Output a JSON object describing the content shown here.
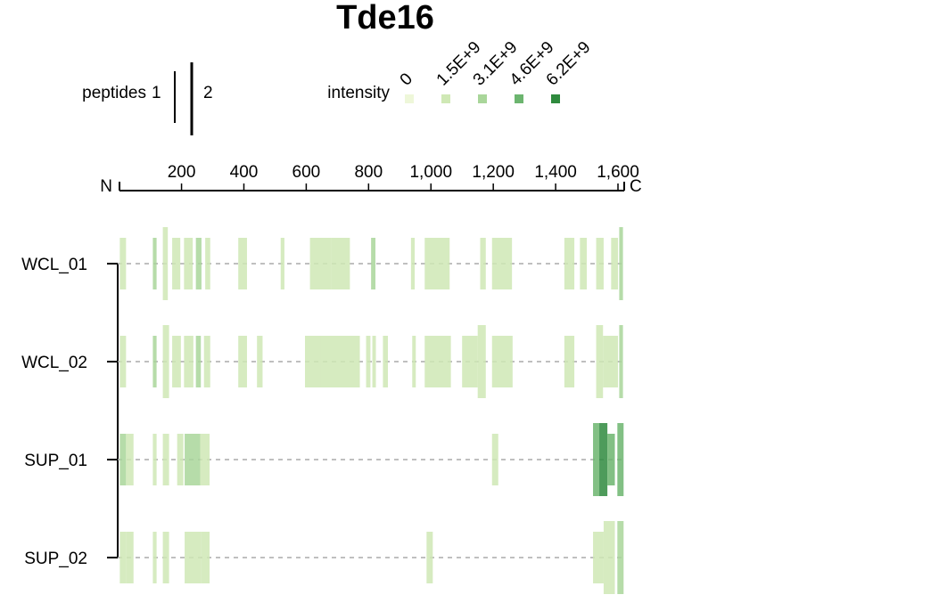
{
  "chart_data": {
    "type": "peptide-coverage",
    "title": "Tde16",
    "axis": {
      "start_label": "N",
      "end_label": "C",
      "range": [
        1,
        1620
      ],
      "ticks": [
        200,
        400,
        600,
        800,
        1000,
        1200,
        1400,
        1600
      ],
      "tick_labels": [
        "200",
        "400",
        "600",
        "800",
        "1,000",
        "1,200",
        "1,400",
        "1,600"
      ]
    },
    "legend": {
      "peptides": {
        "label": "peptides",
        "values": [
          "1",
          "2"
        ]
      },
      "intensity": {
        "label": "intensity",
        "levels": [
          "0",
          "1.5E+9",
          "3.1E+9",
          "4.6E+9",
          "6.2E+9"
        ],
        "colors": [
          "#eef7d9",
          "#cfe8b5",
          "#a9d69a",
          "#6cb56f",
          "#2f8a3e"
        ]
      }
    },
    "samples": [
      {
        "name": "WCL_01",
        "peptides": [
          {
            "start": 2,
            "end": 22,
            "level": 1,
            "count": 1
          },
          {
            "start": 108,
            "end": 120,
            "level": 2,
            "count": 1
          },
          {
            "start": 140,
            "end": 156,
            "level": 1,
            "count": 2
          },
          {
            "start": 170,
            "end": 196,
            "level": 1,
            "count": 1
          },
          {
            "start": 208,
            "end": 236,
            "level": 1,
            "count": 1
          },
          {
            "start": 246,
            "end": 264,
            "level": 2,
            "count": 1
          },
          {
            "start": 276,
            "end": 292,
            "level": 1,
            "count": 1
          },
          {
            "start": 382,
            "end": 410,
            "level": 1,
            "count": 1
          },
          {
            "start": 518,
            "end": 530,
            "level": 1,
            "count": 1
          },
          {
            "start": 612,
            "end": 680,
            "level": 1,
            "count": 1
          },
          {
            "start": 680,
            "end": 740,
            "level": 1,
            "count": 1
          },
          {
            "start": 808,
            "end": 822,
            "level": 2,
            "count": 1
          },
          {
            "start": 936,
            "end": 948,
            "level": 1,
            "count": 1
          },
          {
            "start": 980,
            "end": 1060,
            "level": 1,
            "count": 1
          },
          {
            "start": 1158,
            "end": 1176,
            "level": 1,
            "count": 1
          },
          {
            "start": 1196,
            "end": 1260,
            "level": 1,
            "count": 1
          },
          {
            "start": 1428,
            "end": 1460,
            "level": 1,
            "count": 1
          },
          {
            "start": 1478,
            "end": 1500,
            "level": 1,
            "count": 1
          },
          {
            "start": 1530,
            "end": 1554,
            "level": 1,
            "count": 1
          },
          {
            "start": 1578,
            "end": 1600,
            "level": 1,
            "count": 1
          },
          {
            "start": 1604,
            "end": 1616,
            "level": 2,
            "count": 2
          }
        ]
      },
      {
        "name": "WCL_02",
        "peptides": [
          {
            "start": 2,
            "end": 22,
            "level": 1,
            "count": 1
          },
          {
            "start": 108,
            "end": 120,
            "level": 2,
            "count": 1
          },
          {
            "start": 140,
            "end": 160,
            "level": 1,
            "count": 2
          },
          {
            "start": 170,
            "end": 198,
            "level": 1,
            "count": 1
          },
          {
            "start": 208,
            "end": 238,
            "level": 1,
            "count": 1
          },
          {
            "start": 246,
            "end": 262,
            "level": 2,
            "count": 1
          },
          {
            "start": 272,
            "end": 292,
            "level": 1,
            "count": 1
          },
          {
            "start": 382,
            "end": 410,
            "level": 1,
            "count": 1
          },
          {
            "start": 442,
            "end": 460,
            "level": 1,
            "count": 1
          },
          {
            "start": 596,
            "end": 646,
            "level": 1,
            "count": 1
          },
          {
            "start": 646,
            "end": 772,
            "level": 1,
            "count": 1
          },
          {
            "start": 792,
            "end": 806,
            "level": 1,
            "count": 1
          },
          {
            "start": 812,
            "end": 822,
            "level": 1,
            "count": 1
          },
          {
            "start": 846,
            "end": 862,
            "level": 1,
            "count": 1
          },
          {
            "start": 940,
            "end": 950,
            "level": 1,
            "count": 1
          },
          {
            "start": 980,
            "end": 1064,
            "level": 1,
            "count": 1
          },
          {
            "start": 1100,
            "end": 1150,
            "level": 1,
            "count": 1
          },
          {
            "start": 1150,
            "end": 1176,
            "level": 1,
            "count": 2
          },
          {
            "start": 1196,
            "end": 1262,
            "level": 1,
            "count": 1
          },
          {
            "start": 1428,
            "end": 1460,
            "level": 1,
            "count": 1
          },
          {
            "start": 1530,
            "end": 1552,
            "level": 1,
            "count": 2
          },
          {
            "start": 1552,
            "end": 1600,
            "level": 1,
            "count": 1
          },
          {
            "start": 1604,
            "end": 1616,
            "level": 2,
            "count": 2
          }
        ]
      },
      {
        "name": "SUP_01",
        "peptides": [
          {
            "start": 2,
            "end": 22,
            "level": 2,
            "count": 1
          },
          {
            "start": 22,
            "end": 46,
            "level": 1,
            "count": 1
          },
          {
            "start": 108,
            "end": 120,
            "level": 1,
            "count": 1
          },
          {
            "start": 140,
            "end": 160,
            "level": 1,
            "count": 1
          },
          {
            "start": 186,
            "end": 206,
            "level": 1,
            "count": 1
          },
          {
            "start": 210,
            "end": 260,
            "level": 2,
            "count": 1
          },
          {
            "start": 260,
            "end": 290,
            "level": 1,
            "count": 1
          },
          {
            "start": 1196,
            "end": 1216,
            "level": 1,
            "count": 1
          },
          {
            "start": 1520,
            "end": 1540,
            "level": 3,
            "count": 2
          },
          {
            "start": 1540,
            "end": 1566,
            "level": 4,
            "count": 2
          },
          {
            "start": 1566,
            "end": 1590,
            "level": 3,
            "count": 1
          },
          {
            "start": 1598,
            "end": 1618,
            "level": 3,
            "count": 2
          }
        ]
      },
      {
        "name": "SUP_02",
        "peptides": [
          {
            "start": 2,
            "end": 22,
            "level": 1,
            "count": 1
          },
          {
            "start": 22,
            "end": 46,
            "level": 1,
            "count": 1
          },
          {
            "start": 108,
            "end": 120,
            "level": 1,
            "count": 1
          },
          {
            "start": 140,
            "end": 160,
            "level": 1,
            "count": 1
          },
          {
            "start": 210,
            "end": 262,
            "level": 1,
            "count": 1
          },
          {
            "start": 262,
            "end": 290,
            "level": 1,
            "count": 1
          },
          {
            "start": 986,
            "end": 1006,
            "level": 1,
            "count": 1
          },
          {
            "start": 1520,
            "end": 1554,
            "level": 1,
            "count": 1
          },
          {
            "start": 1554,
            "end": 1590,
            "level": 1,
            "count": 2
          },
          {
            "start": 1598,
            "end": 1618,
            "level": 2,
            "count": 2
          }
        ]
      }
    ]
  }
}
